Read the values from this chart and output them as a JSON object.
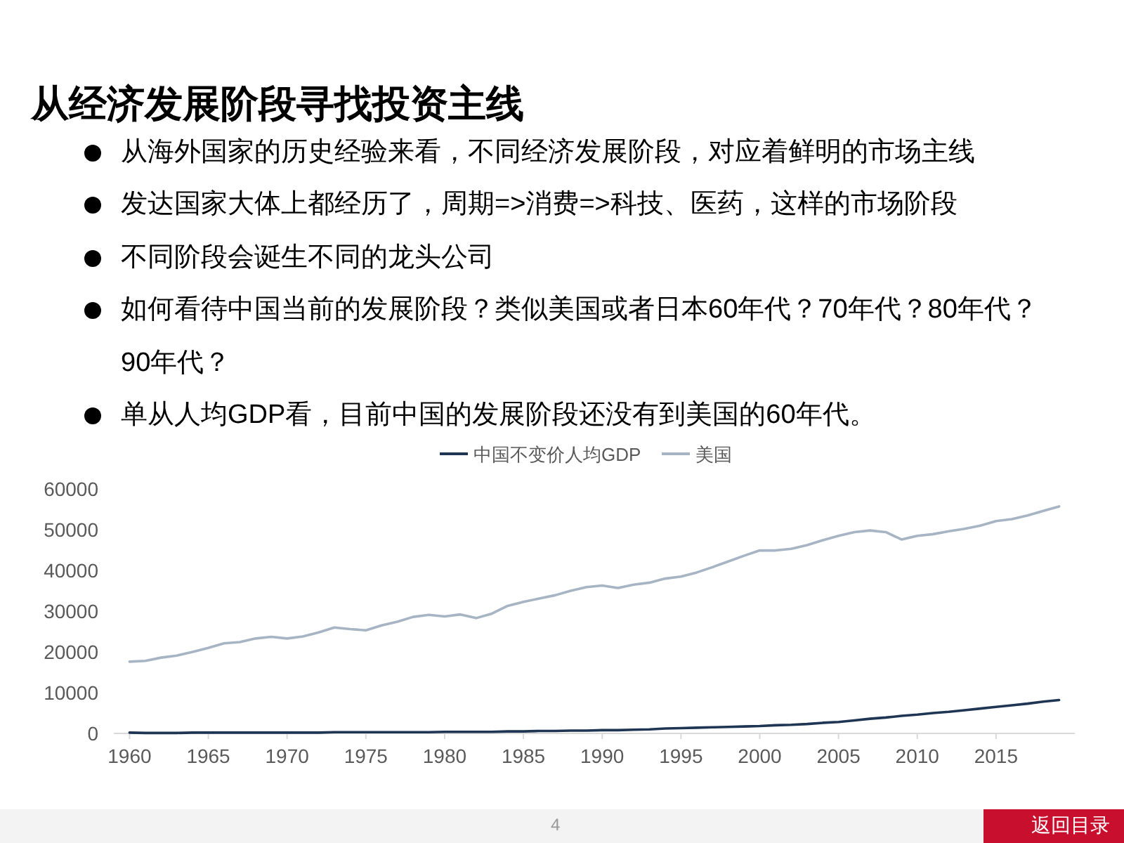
{
  "chart_data": {
    "type": "line",
    "title": "从经济发展阶段寻找投资主线",
    "annotations": [
      "从海外国家的历史经验来看，不同经济发展阶段，对应着鲜明的市场主线",
      "发达国家大体上都经历了，周期=>消费=>科技、医药，这样的市场阶段",
      "不同阶段会诞生不同的龙头公司",
      "如何看待中国当前的发展阶段？类似美国或者日本60年代？70年代？80年代？90年代？",
      "单从人均GDP看，目前中国的发展阶段还没有到美国的60年代。",
      "4",
      "返回目录"
    ],
    "x": [
      1960,
      1961,
      1962,
      1963,
      1964,
      1965,
      1966,
      1967,
      1968,
      1969,
      1970,
      1971,
      1972,
      1973,
      1974,
      1975,
      1976,
      1977,
      1978,
      1979,
      1980,
      1981,
      1982,
      1983,
      1984,
      1985,
      1986,
      1987,
      1988,
      1989,
      1990,
      1991,
      1992,
      1993,
      1994,
      1995,
      1996,
      1997,
      1998,
      1999,
      2000,
      2001,
      2002,
      2003,
      2004,
      2005,
      2006,
      2007,
      2008,
      2009,
      2010,
      2011,
      2012,
      2013,
      2014,
      2015,
      2016,
      2017,
      2018,
      2019
    ],
    "series": [
      {
        "name": "中国不变价人均GDP",
        "color": "#1f3554",
        "values": [
          200,
          100,
          100,
          100,
          200,
          200,
          200,
          200,
          200,
          200,
          200,
          200,
          200,
          300,
          300,
          300,
          300,
          300,
          300,
          300,
          400,
          400,
          400,
          400,
          500,
          500,
          600,
          600,
          700,
          700,
          800,
          800,
          900,
          1000,
          1200,
          1300,
          1400,
          1500,
          1600,
          1700,
          1800,
          2000,
          2100,
          2300,
          2600,
          2800,
          3200,
          3600,
          3900,
          4300,
          4600,
          5000,
          5300,
          5700,
          6100,
          6500,
          6900,
          7300,
          7800,
          8200
        ]
      },
      {
        "name": "美国",
        "color": "#a6b4c3",
        "values": [
          17600,
          17800,
          18600,
          19100,
          20000,
          21000,
          22100,
          22400,
          23300,
          23700,
          23300,
          23800,
          24800,
          26000,
          25600,
          25300,
          26500,
          27400,
          28600,
          29100,
          28700,
          29200,
          28300,
          29400,
          31300,
          32300,
          33100,
          33900,
          35000,
          35900,
          36300,
          35700,
          36500,
          37000,
          38000,
          38500,
          39500,
          40800,
          42200,
          43600,
          44900,
          44900,
          45300,
          46200,
          47400,
          48500,
          49400,
          49800,
          49400,
          47600,
          48500,
          48900,
          49600,
          50200,
          51000,
          52100,
          52600,
          53500,
          54600,
          55700
        ]
      }
    ],
    "xlim": [
      1959,
      2020
    ],
    "xticks": [
      1960,
      1965,
      1970,
      1975,
      1980,
      1985,
      1990,
      1995,
      2000,
      2005,
      2010,
      2015
    ],
    "ylim": [
      0,
      60000
    ],
    "yticks": [
      0,
      10000,
      20000,
      30000,
      40000,
      50000,
      60000
    ],
    "legend": "top"
  }
}
